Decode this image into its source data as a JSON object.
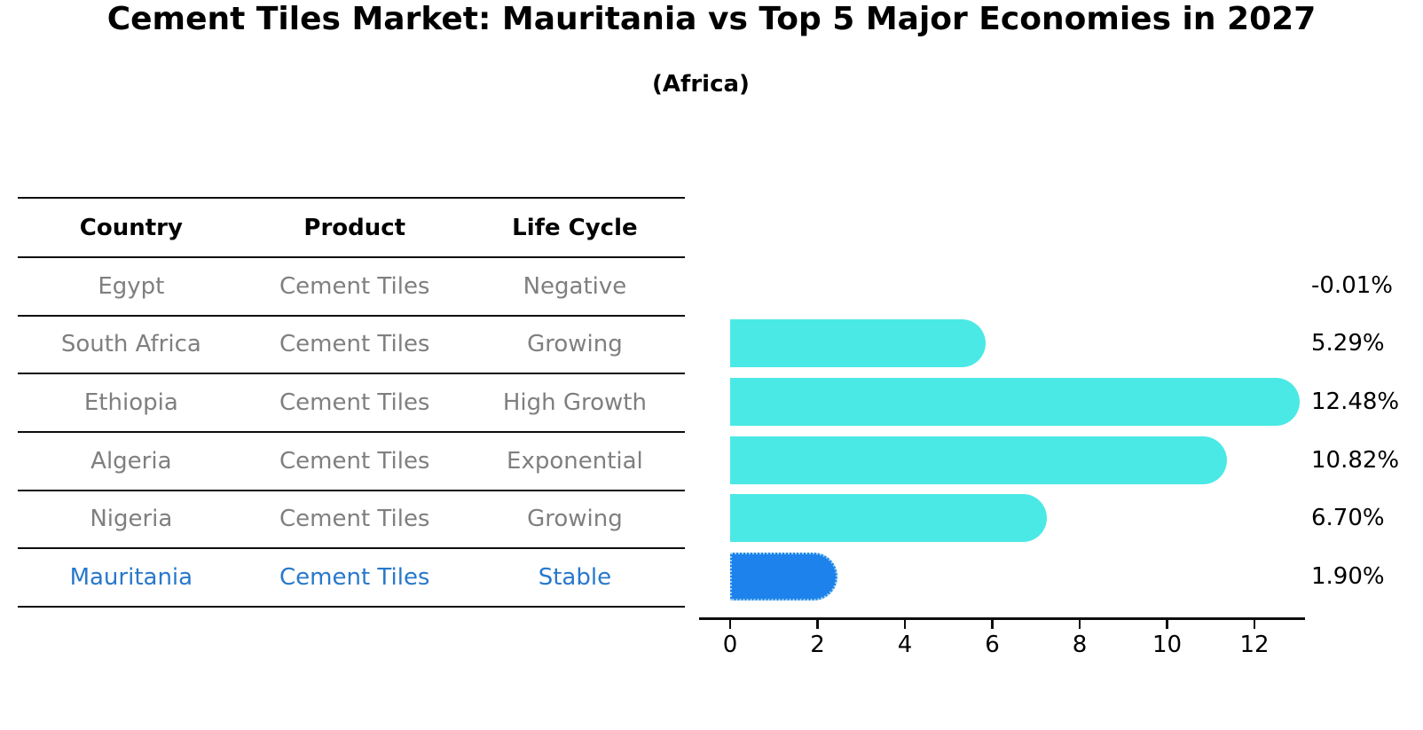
{
  "title": "Cement Tiles Market: Mauritania vs Top 5 Major Economies in 2027",
  "subtitle": "(Africa)",
  "table": {
    "headers": [
      "Country",
      "Product",
      "Life Cycle"
    ],
    "rows": [
      {
        "country": "Egypt",
        "product": "Cement Tiles",
        "life_cycle": "Negative",
        "highlight": false
      },
      {
        "country": "South Africa",
        "product": "Cement Tiles",
        "life_cycle": "Growing",
        "highlight": false
      },
      {
        "country": "Ethiopia",
        "product": "Cement Tiles",
        "life_cycle": "High Growth",
        "highlight": false
      },
      {
        "country": "Algeria",
        "product": "Cement Tiles",
        "life_cycle": "Exponential",
        "highlight": false
      },
      {
        "country": "Nigeria",
        "product": "Cement Tiles",
        "life_cycle": "Growing",
        "highlight": false
      },
      {
        "country": "Mauritania",
        "product": "Cement Tiles",
        "life_cycle": "Stable",
        "highlight": true
      }
    ]
  },
  "chart_data": {
    "type": "bar",
    "orientation": "horizontal",
    "title": "Cement Tiles Market: Mauritania vs Top 5 Major Economies in 2027",
    "subtitle": "(Africa)",
    "categories": [
      "Egypt",
      "South Africa",
      "Ethiopia",
      "Algeria",
      "Nigeria",
      "Mauritania"
    ],
    "values": [
      -0.01,
      5.29,
      12.48,
      10.82,
      6.7,
      1.9
    ],
    "value_labels": [
      "-0.01%",
      "5.29%",
      "12.48%",
      "10.82%",
      "6.70%",
      "1.90%"
    ],
    "xticks": [
      0,
      2,
      4,
      6,
      8,
      10,
      12
    ],
    "xlim": [
      -0.7,
      13.2
    ],
    "grid": false,
    "legend": false,
    "bar_color": "#4BE9E5",
    "highlight_color": "#1E82EC",
    "highlight_border_color": "#9BD4F0",
    "highlight_index": 5
  },
  "colors": {
    "bar_cyan": "#4BE9E5",
    "highlight_blue": "#1E82EC",
    "highlight_text_blue": "#2878CB",
    "row_text_gray": "#7f7f7f",
    "line_black": "#0d0d0d"
  }
}
